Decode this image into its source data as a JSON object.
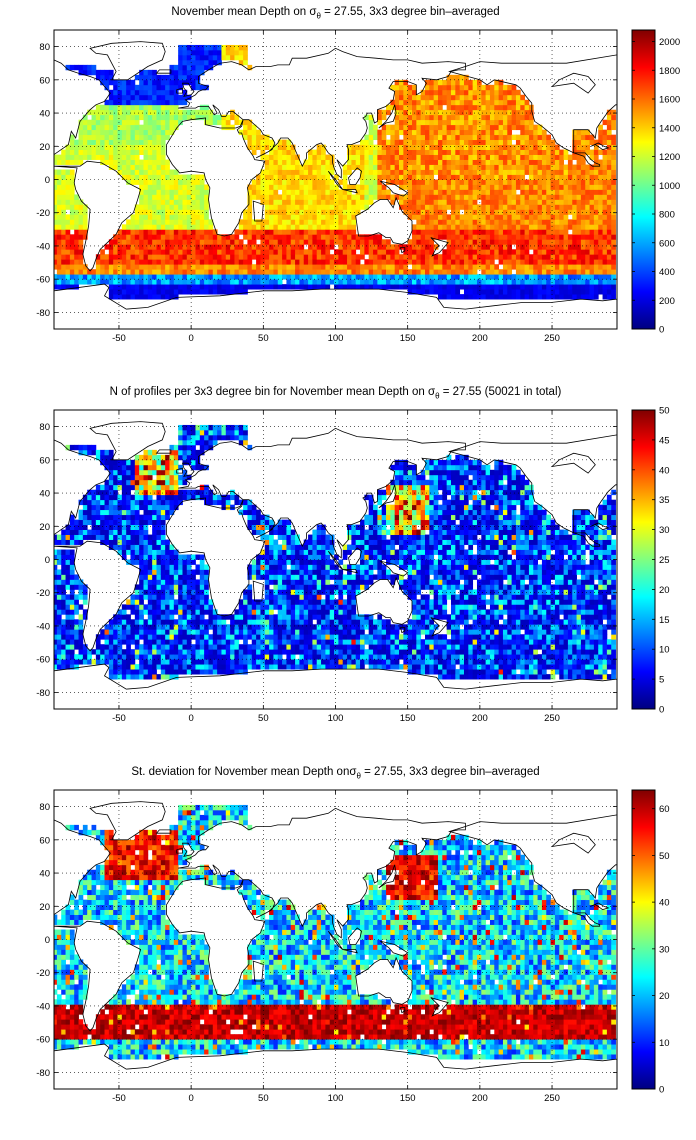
{
  "chart_data": [
    {
      "type": "heatmap",
      "title_prefix": "November mean Depth on ",
      "title_symbol": "σ",
      "title_subscript": "θ",
      "title_suffix": " = 27.55, 3x3 degree bin–averaged",
      "x_ticks": [
        "-50",
        "0",
        "50",
        "100",
        "150",
        "200",
        "250"
      ],
      "x_tick_values": [
        -50,
        0,
        50,
        100,
        150,
        200,
        250
      ],
      "y_ticks": [
        "80",
        "60",
        "40",
        "20",
        "0",
        "-20",
        "-40",
        "-60",
        "-80"
      ],
      "y_tick_values": [
        80,
        60,
        40,
        20,
        0,
        -20,
        -40,
        -60,
        -80
      ],
      "xlim": [
        -95,
        295
      ],
      "ylim": [
        -90,
        90
      ],
      "grid": true,
      "colormap": "jet",
      "colorbar_ticks": [
        "0",
        "200",
        "400",
        "600",
        "800",
        "1000",
        "1200",
        "1400",
        "1600",
        "1800",
        "2000"
      ],
      "colorbar_tick_values": [
        0,
        200,
        400,
        600,
        800,
        1000,
        1200,
        1400,
        1600,
        1800,
        2000
      ],
      "clim": [
        0,
        2080
      ],
      "field": "depth"
    },
    {
      "type": "heatmap",
      "title_prefix": "N of profiles per 3x3 degree bin for November mean Depth on ",
      "title_symbol": "σ",
      "title_subscript": "θ",
      "title_suffix": " = 27.55 (50021 in total)",
      "x_ticks": [
        "-50",
        "0",
        "50",
        "100",
        "150",
        "200",
        "250"
      ],
      "x_tick_values": [
        -50,
        0,
        50,
        100,
        150,
        200,
        250
      ],
      "y_ticks": [
        "80",
        "60",
        "40",
        "20",
        "0",
        "-20",
        "-40",
        "-60",
        "-80"
      ],
      "y_tick_values": [
        80,
        60,
        40,
        20,
        0,
        -20,
        -40,
        -60,
        -80
      ],
      "xlim": [
        -95,
        295
      ],
      "ylim": [
        -90,
        90
      ],
      "grid": true,
      "colormap": "jet",
      "colorbar_ticks": [
        "0",
        "5",
        "10",
        "15",
        "20",
        "25",
        "30",
        "35",
        "40",
        "45",
        "50"
      ],
      "colorbar_tick_values": [
        0,
        5,
        10,
        15,
        20,
        25,
        30,
        35,
        40,
        45,
        50
      ],
      "clim": [
        0,
        50
      ],
      "field": "count"
    },
    {
      "type": "heatmap",
      "title_prefix": "St. deviation for November mean Depth on",
      "title_symbol": "σ",
      "title_subscript": "θ",
      "title_suffix": " = 27.55, 3x3 degree bin–averaged",
      "x_ticks": [
        "-50",
        "0",
        "50",
        "100",
        "150",
        "200",
        "250"
      ],
      "x_tick_values": [
        -50,
        0,
        50,
        100,
        150,
        200,
        250
      ],
      "y_ticks": [
        "80",
        "60",
        "40",
        "20",
        "0",
        "-20",
        "-40",
        "-60",
        "-80"
      ],
      "y_tick_values": [
        80,
        60,
        40,
        20,
        0,
        -20,
        -40,
        -60,
        -80
      ],
      "xlim": [
        -95,
        295
      ],
      "ylim": [
        -90,
        90
      ],
      "grid": true,
      "colormap": "jet",
      "colorbar_ticks": [
        "0",
        "10",
        "20",
        "30",
        "40",
        "50",
        "60"
      ],
      "colorbar_tick_values": [
        0,
        10,
        20,
        30,
        40,
        50,
        60
      ],
      "clim": [
        0,
        64
      ],
      "field": "stdev"
    }
  ]
}
